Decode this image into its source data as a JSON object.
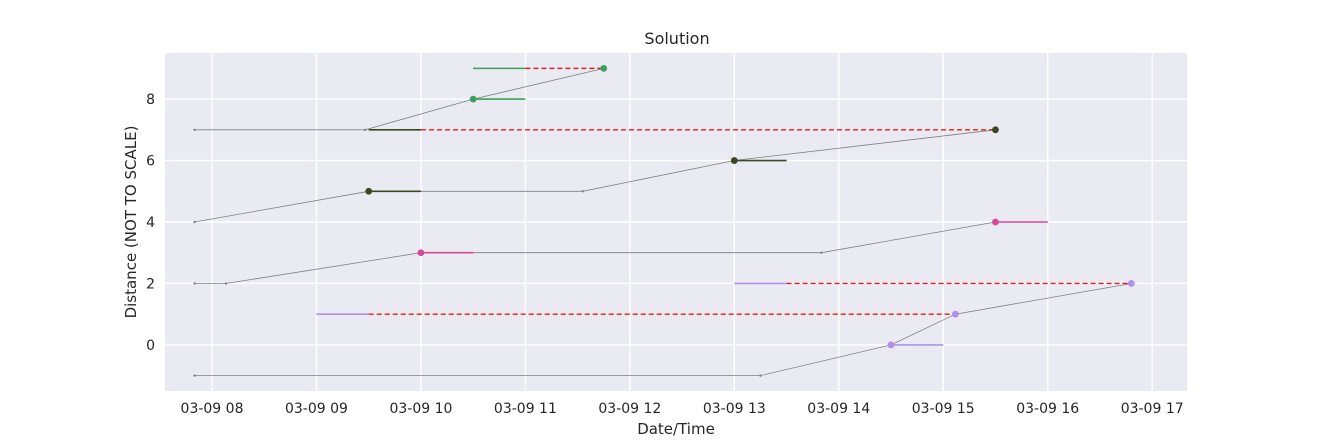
{
  "chart_data": {
    "type": "line",
    "title": "Solution",
    "xlabel": "Date/Time",
    "ylabel": "Distance (NOT TO SCALE)",
    "x_is_datetime": true,
    "xlim": [
      "03-09 07:33",
      "03-09 17:20"
    ],
    "ylim": [
      -1.5,
      9.5
    ],
    "x_ticks": [
      "03-09 08:00",
      "03-09 09:00",
      "03-09 10:00",
      "03-09 11:00",
      "03-09 12:00",
      "03-09 13:00",
      "03-09 14:00",
      "03-09 15:00",
      "03-09 16:00",
      "03-09 17:00"
    ],
    "x_tick_labels": [
      "03-09 08",
      "03-09 09",
      "03-09 10",
      "03-09 11",
      "03-09 12",
      "03-09 13",
      "03-09 14",
      "03-09 15",
      "03-09 16",
      "03-09 17"
    ],
    "y_ticks": [
      0,
      2,
      4,
      6,
      8
    ],
    "y_tick_labels": [
      "0",
      "2",
      "4",
      "6",
      "8"
    ],
    "grid": true,
    "background": "#eaeaf2",
    "routes": [
      {
        "color": "#808080",
        "points": [
          [
            "03-09 07:50",
            -1
          ],
          [
            "03-09 13:15",
            -1
          ],
          [
            "03-09 14:30",
            0
          ],
          [
            "03-09 15:07",
            1
          ],
          [
            "03-09 16:48",
            2
          ]
        ]
      },
      {
        "color": "#808080",
        "points": [
          [
            "03-09 07:50",
            2
          ],
          [
            "03-09 08:08",
            2
          ],
          [
            "03-09 10:00",
            3
          ],
          [
            "03-09 13:50",
            3
          ],
          [
            "03-09 15:30",
            4
          ]
        ]
      },
      {
        "color": "#808080",
        "points": [
          [
            "03-09 07:50",
            4
          ],
          [
            "03-09 09:30",
            5
          ],
          [
            "03-09 11:33",
            5
          ],
          [
            "03-09 13:00",
            6
          ],
          [
            "03-09 15:30",
            7
          ]
        ]
      },
      {
        "color": "#808080",
        "points": [
          [
            "03-09 07:50",
            7
          ],
          [
            "03-09 09:28",
            7
          ],
          [
            "03-09 10:30",
            8
          ],
          [
            "03-09 11:45",
            9
          ]
        ]
      }
    ],
    "windows": [
      {
        "color": "#b28fe8",
        "y": 0,
        "start": "03-09 14:30",
        "end": "03-09 15:00"
      },
      {
        "color": "#b28fe8",
        "y": 1,
        "start": "03-09 09:00",
        "end": "03-09 09:30"
      },
      {
        "color": "#b28fe8",
        "y": 2,
        "start": "03-09 13:00",
        "end": "03-09 13:30"
      },
      {
        "color": "#d6489a",
        "y": 3,
        "start": "03-09 10:00",
        "end": "03-09 10:30"
      },
      {
        "color": "#d6489a",
        "y": 4,
        "start": "03-09 15:30",
        "end": "03-09 16:00"
      },
      {
        "color": "#3b4a1e",
        "y": 5,
        "start": "03-09 09:30",
        "end": "03-09 10:00"
      },
      {
        "color": "#3b4a1e",
        "y": 6,
        "start": "03-09 13:00",
        "end": "03-09 13:30"
      },
      {
        "color": "#3b4a1e",
        "y": 7,
        "start": "03-09 09:30",
        "end": "03-09 10:00"
      },
      {
        "color": "#3aa05a",
        "y": 8,
        "start": "03-09 10:30",
        "end": "03-09 11:00"
      },
      {
        "color": "#3aa05a",
        "y": 9,
        "start": "03-09 10:30",
        "end": "03-09 11:00"
      }
    ],
    "late_segments": [
      {
        "color": "#e02020",
        "y": 1,
        "start": "03-09 09:30",
        "end": "03-09 15:07"
      },
      {
        "color": "#e02020",
        "y": 2,
        "start": "03-09 13:30",
        "end": "03-09 16:48"
      },
      {
        "color": "#e02020",
        "y": 7,
        "start": "03-09 10:00",
        "end": "03-09 15:30"
      },
      {
        "color": "#e02020",
        "y": 9,
        "start": "03-09 11:00",
        "end": "03-09 11:45"
      }
    ],
    "stops": [
      {
        "color": "#b28fe8",
        "x": "03-09 14:30",
        "y": 0
      },
      {
        "color": "#b28fe8",
        "x": "03-09 15:07",
        "y": 1
      },
      {
        "color": "#b28fe8",
        "x": "03-09 16:48",
        "y": 2
      },
      {
        "color": "#d6489a",
        "x": "03-09 10:00",
        "y": 3
      },
      {
        "color": "#d6489a",
        "x": "03-09 15:30",
        "y": 4
      },
      {
        "color": "#3b4a1e",
        "x": "03-09 09:30",
        "y": 5
      },
      {
        "color": "#3b4a1e",
        "x": "03-09 13:00",
        "y": 6
      },
      {
        "color": "#3b4a1e",
        "x": "03-09 15:30",
        "y": 7
      },
      {
        "color": "#3aa05a",
        "x": "03-09 10:30",
        "y": 8
      },
      {
        "color": "#3aa05a",
        "x": "03-09 11:45",
        "y": 9
      }
    ],
    "depots": [
      {
        "x": "03-09 07:50",
        "y": -1
      },
      {
        "x": "03-09 13:15",
        "y": -1
      },
      {
        "x": "03-09 07:50",
        "y": 2
      },
      {
        "x": "03-09 08:08",
        "y": 2
      },
      {
        "x": "03-09 13:50",
        "y": 3
      },
      {
        "x": "03-09 07:50",
        "y": 4
      },
      {
        "x": "03-09 11:33",
        "y": 5
      },
      {
        "x": "03-09 07:50",
        "y": 7
      },
      {
        "x": "03-09 09:28",
        "y": 7
      }
    ]
  }
}
